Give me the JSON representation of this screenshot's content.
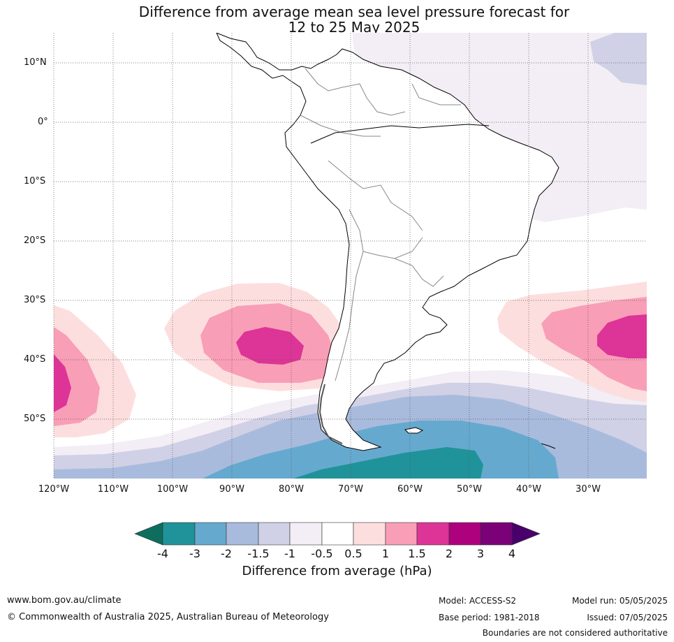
{
  "title": {
    "line1": "Difference from average mean sea level pressure forecast for",
    "line2": "12 to 25 May 2025"
  },
  "map": {
    "lat_labels": [
      "10°N",
      "0°",
      "10°S",
      "20°S",
      "30°S",
      "40°S",
      "50°S"
    ],
    "lon_labels": [
      "120°W",
      "110°W",
      "100°W",
      "90°W",
      "80°W",
      "70°W",
      "60°W",
      "50°W",
      "40°W",
      "30°W"
    ],
    "lat_range": [
      -60,
      15
    ],
    "lon_range": [
      -120,
      -20
    ],
    "gridlines": true
  },
  "colorbar": {
    "ticks": [
      "-4",
      "-3",
      "-2",
      "-1.5",
      "-1",
      "-0.5",
      "0.5",
      "1",
      "1.5",
      "2",
      "3",
      "4"
    ],
    "label": "Difference from average (hPa)",
    "colors": {
      "below_-4": "#0d6e5e",
      "-4_-3": "#1f9399",
      "-3_-2": "#66a9cf",
      "-2_-1.5": "#a9bbdd",
      "-1.5_-1": "#d0d1e6",
      "-1_-0.5": "#f3edf5",
      "-0.5_0.5": "#ffffff",
      "0.5_1": "#fddede",
      "1_1.5": "#f99eb7",
      "1.5_2": "#dd3497",
      "2_3": "#ae017e",
      "3_4": "#7a0177",
      "above_4": "#49006a"
    }
  },
  "footer": {
    "website": "www.bom.gov.au/climate",
    "copyright": "© Commonwealth of Australia 2025, Australian Bureau of Meteorology",
    "model": "Model: ACCESS-S2",
    "base_period": "Base period: 1981-2018",
    "model_run": "Model run: 05/05/2025",
    "issued": "Issued: 07/05/2025",
    "disclaimer": "Boundaries are not considered authoritative"
  }
}
